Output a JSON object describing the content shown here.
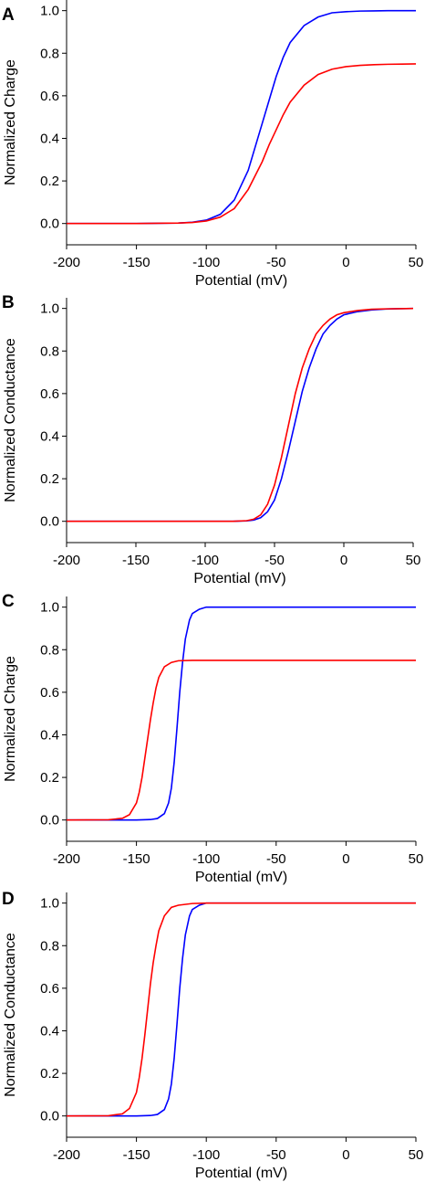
{
  "chart_data": [
    {
      "panel": "A",
      "type": "line",
      "xlabel": "Potential (mV)",
      "ylabel": "Normalized Charge",
      "xlim": [
        -200,
        50
      ],
      "ylim": [
        -0.1,
        1.05
      ],
      "xticks": [
        -200,
        -150,
        -100,
        -50,
        0,
        50
      ],
      "xtick_labels": [
        "-200",
        "-150",
        "-100",
        "-50",
        "0",
        "50"
      ],
      "yticks": [
        0.0,
        0.2,
        0.4,
        0.6,
        0.8,
        1.0
      ],
      "ytick_labels": [
        "0.0",
        "0.2",
        "0.4",
        "0.6",
        "0.8",
        "1.0"
      ],
      "series": [
        {
          "color": "#0000ff",
          "x": [
            -200,
            -150,
            -120,
            -110,
            -100,
            -90,
            -80,
            -70,
            -60,
            -55,
            -50,
            -45,
            -40,
            -30,
            -20,
            -10,
            0,
            10,
            20,
            30,
            40,
            50
          ],
          "y": [
            0.0,
            0.0,
            0.002,
            0.006,
            0.016,
            0.043,
            0.11,
            0.25,
            0.47,
            0.58,
            0.69,
            0.78,
            0.85,
            0.93,
            0.97,
            0.99,
            0.995,
            0.998,
            0.999,
            1.0,
            1.0,
            1.0
          ]
        },
        {
          "color": "#ff0000",
          "x": [
            -200,
            -150,
            -120,
            -110,
            -100,
            -90,
            -80,
            -70,
            -60,
            -55,
            -50,
            -45,
            -40,
            -30,
            -20,
            -10,
            0,
            10,
            20,
            30,
            40,
            50
          ],
          "y": [
            0.0,
            0.0,
            0.002,
            0.005,
            0.012,
            0.03,
            0.07,
            0.16,
            0.29,
            0.37,
            0.44,
            0.51,
            0.57,
            0.65,
            0.7,
            0.725,
            0.737,
            0.743,
            0.746,
            0.748,
            0.749,
            0.75
          ]
        }
      ]
    },
    {
      "panel": "B",
      "type": "line",
      "xlabel": "Potential (mV)",
      "ylabel": "Normalized Conductance",
      "xlim": [
        -200,
        50
      ],
      "ylim": [
        -0.1,
        1.05
      ],
      "xticks": [
        -200,
        -150,
        -100,
        -50,
        0,
        50
      ],
      "xtick_labels": [
        "-200",
        "-150",
        "-100",
        "-50",
        "0",
        "50"
      ],
      "yticks": [
        0.0,
        0.2,
        0.4,
        0.6,
        0.8,
        1.0
      ],
      "ytick_labels": [
        "0.0",
        "0.2",
        "0.4",
        "0.6",
        "0.8",
        "1.0"
      ],
      "series": [
        {
          "color": "#0000ff",
          "x": [
            -200,
            -100,
            -80,
            -70,
            -65,
            -60,
            -55,
            -50,
            -45,
            -40,
            -35,
            -30,
            -25,
            -20,
            -15,
            -10,
            -5,
            0,
            10,
            20,
            30,
            40,
            50
          ],
          "y": [
            0.0,
            0.0,
            0.0,
            0.002,
            0.006,
            0.017,
            0.045,
            0.1,
            0.2,
            0.33,
            0.47,
            0.61,
            0.72,
            0.81,
            0.88,
            0.92,
            0.95,
            0.97,
            0.985,
            0.993,
            0.997,
            0.999,
            1.0
          ]
        },
        {
          "color": "#ff0000",
          "x": [
            -200,
            -100,
            -80,
            -70,
            -65,
            -60,
            -55,
            -50,
            -45,
            -40,
            -35,
            -30,
            -25,
            -20,
            -15,
            -10,
            -5,
            0,
            10,
            20,
            30,
            40,
            50
          ],
          "y": [
            0.0,
            0.0,
            0.0,
            0.003,
            0.01,
            0.03,
            0.08,
            0.17,
            0.3,
            0.45,
            0.6,
            0.72,
            0.81,
            0.88,
            0.92,
            0.95,
            0.97,
            0.98,
            0.99,
            0.996,
            0.998,
            0.999,
            1.0
          ]
        }
      ]
    },
    {
      "panel": "C",
      "type": "line",
      "xlabel": "Potential (mV)",
      "ylabel": "Normalized Charge",
      "xlim": [
        -200,
        50
      ],
      "ylim": [
        -0.1,
        1.05
      ],
      "xticks": [
        -200,
        -150,
        -100,
        -50,
        0,
        50
      ],
      "xtick_labels": [
        "-200",
        "-150",
        "-100",
        "-50",
        "0",
        "50"
      ],
      "yticks": [
        0.0,
        0.2,
        0.4,
        0.6,
        0.8,
        1.0
      ],
      "ytick_labels": [
        "0.0",
        "0.2",
        "0.4",
        "0.6",
        "0.8",
        "1.0"
      ],
      "series": [
        {
          "color": "#0000ff",
          "x": [
            -200,
            -150,
            -140,
            -135,
            -130,
            -127,
            -125,
            -123,
            -121,
            -119,
            -117,
            -115,
            -112,
            -110,
            -105,
            -100,
            -80,
            -50,
            0,
            50
          ],
          "y": [
            0.0,
            0.0,
            0.002,
            0.007,
            0.03,
            0.08,
            0.15,
            0.27,
            0.43,
            0.6,
            0.74,
            0.85,
            0.94,
            0.97,
            0.99,
            1.0,
            1.0,
            1.0,
            1.0,
            1.0
          ]
        },
        {
          "color": "#ff0000",
          "x": [
            -200,
            -170,
            -160,
            -155,
            -150,
            -148,
            -146,
            -144,
            -142,
            -140,
            -138,
            -136,
            -134,
            -130,
            -125,
            -120,
            -110,
            -100,
            -50,
            0,
            50
          ],
          "y": [
            0.0,
            0.001,
            0.008,
            0.025,
            0.08,
            0.13,
            0.2,
            0.29,
            0.38,
            0.47,
            0.55,
            0.62,
            0.67,
            0.72,
            0.74,
            0.748,
            0.75,
            0.75,
            0.75,
            0.75,
            0.75
          ]
        }
      ]
    },
    {
      "panel": "D",
      "type": "line",
      "xlabel": "Potential (mV)",
      "ylabel": "Normalized Conductance",
      "xlim": [
        -200,
        50
      ],
      "ylim": [
        -0.1,
        1.05
      ],
      "xticks": [
        -200,
        -150,
        -100,
        -50,
        0,
        50
      ],
      "xtick_labels": [
        "-200",
        "-150",
        "-100",
        "-50",
        "0",
        "50"
      ],
      "yticks": [
        0.0,
        0.2,
        0.4,
        0.6,
        0.8,
        1.0
      ],
      "ytick_labels": [
        "0.0",
        "0.2",
        "0.4",
        "0.6",
        "0.8",
        "1.0"
      ],
      "series": [
        {
          "color": "#0000ff",
          "x": [
            -200,
            -150,
            -140,
            -135,
            -130,
            -127,
            -125,
            -123,
            -121,
            -119,
            -117,
            -115,
            -112,
            -110,
            -105,
            -100,
            -80,
            -50,
            0,
            50
          ],
          "y": [
            0.0,
            0.0,
            0.002,
            0.007,
            0.03,
            0.08,
            0.15,
            0.27,
            0.43,
            0.6,
            0.74,
            0.85,
            0.94,
            0.97,
            0.99,
            1.0,
            1.0,
            1.0,
            1.0,
            1.0
          ]
        },
        {
          "color": "#ff0000",
          "x": [
            -200,
            -170,
            -160,
            -155,
            -150,
            -148,
            -146,
            -144,
            -142,
            -140,
            -138,
            -136,
            -134,
            -130,
            -125,
            -120,
            -110,
            -100,
            -50,
            0,
            50
          ],
          "y": [
            0.0,
            0.001,
            0.01,
            0.035,
            0.11,
            0.18,
            0.27,
            0.38,
            0.5,
            0.62,
            0.72,
            0.8,
            0.87,
            0.94,
            0.98,
            0.99,
            0.998,
            1.0,
            1.0,
            1.0,
            1.0
          ]
        }
      ]
    }
  ]
}
